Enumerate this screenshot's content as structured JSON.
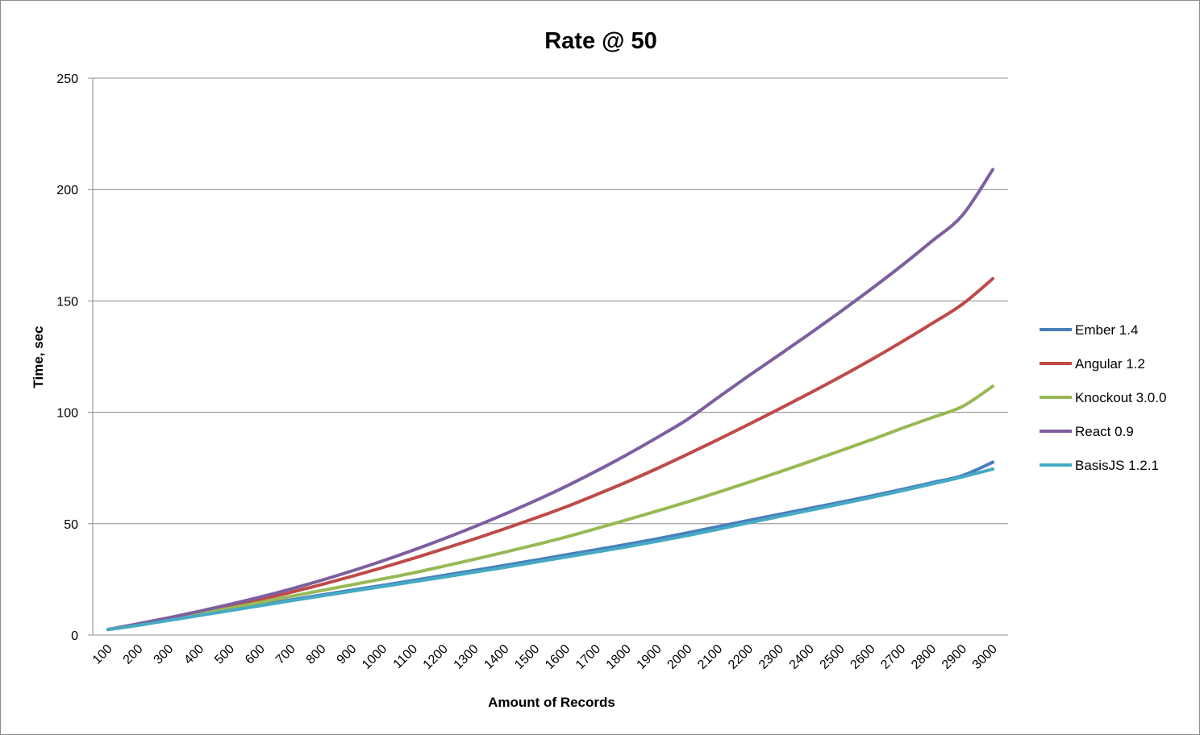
{
  "chart_data": {
    "type": "line",
    "title": "Rate @ 50",
    "xlabel": "Amount of Records",
    "ylabel": "Time, sec",
    "categories": [
      "100",
      "200",
      "300",
      "400",
      "500",
      "600",
      "700",
      "800",
      "900",
      "1000",
      "1100",
      "1200",
      "1300",
      "1400",
      "1500",
      "1600",
      "1700",
      "1800",
      "1900",
      "2000",
      "2100",
      "2200",
      "2300",
      "2400",
      "2500",
      "2600",
      "2700",
      "2800",
      "2900",
      "3000"
    ],
    "ylim": [
      0,
      250
    ],
    "yticks": [
      0,
      50,
      100,
      150,
      200,
      250
    ],
    "grid": true,
    "legend": "right",
    "series": [
      {
        "name": "Ember 1.4",
        "color": "#4a7ebb",
        "values": [
          2.5,
          4.5,
          6.8,
          9.0,
          11.3,
          13.5,
          15.8,
          18.0,
          20.2,
          22.3,
          24.5,
          26.8,
          29.0,
          31.3,
          33.6,
          36.0,
          38.3,
          40.7,
          43.2,
          45.9,
          48.7,
          51.5,
          54.2,
          56.9,
          59.6,
          62.4,
          65.3,
          68.4,
          71.6,
          77.6
        ]
      },
      {
        "name": "Angular 1.2",
        "color": "#be4b48",
        "values": [
          2.5,
          5.0,
          7.6,
          10.2,
          13.0,
          16.0,
          19.2,
          22.7,
          26.4,
          30.3,
          34.4,
          38.7,
          43.1,
          47.7,
          52.5,
          57.5,
          63.0,
          68.7,
          74.8,
          81.2,
          87.8,
          94.6,
          101.5,
          108.6,
          115.9,
          123.5,
          131.5,
          139.8,
          148.5,
          160.0
        ]
      },
      {
        "name": "Knockout 3.0.0",
        "color": "#98b954",
        "values": [
          2.5,
          4.6,
          7.0,
          9.5,
          12.1,
          14.7,
          17.4,
          20.0,
          22.6,
          25.2,
          27.9,
          30.9,
          34.0,
          37.2,
          40.5,
          44.0,
          47.8,
          51.7,
          55.7,
          59.8,
          64.1,
          68.6,
          73.2,
          77.9,
          82.7,
          87.6,
          92.7,
          97.6,
          102.6,
          111.7
        ]
      },
      {
        "name": "React 0.9",
        "color": "#7d5fa0",
        "values": [
          2.5,
          5.1,
          7.8,
          10.7,
          13.8,
          17.1,
          20.7,
          24.6,
          28.8,
          33.3,
          38.1,
          43.2,
          48.6,
          54.3,
          60.3,
          66.7,
          73.6,
          80.9,
          88.7,
          96.9,
          106.7,
          116.4,
          125.8,
          135.3,
          145.1,
          155.2,
          165.7,
          176.8,
          188.4,
          209.0
        ]
      },
      {
        "name": "BasisJS 1.2.1",
        "color": "#46aac4",
        "values": [
          2.5,
          4.4,
          6.6,
          8.8,
          11.0,
          13.2,
          15.4,
          17.6,
          19.7,
          21.8,
          23.9,
          26.0,
          28.2,
          30.4,
          32.7,
          35.0,
          37.3,
          39.6,
          42.1,
          44.7,
          47.5,
          50.4,
          53.2,
          56.0,
          58.8,
          61.7,
          64.7,
          67.8,
          71.0,
          74.5
        ]
      }
    ]
  }
}
